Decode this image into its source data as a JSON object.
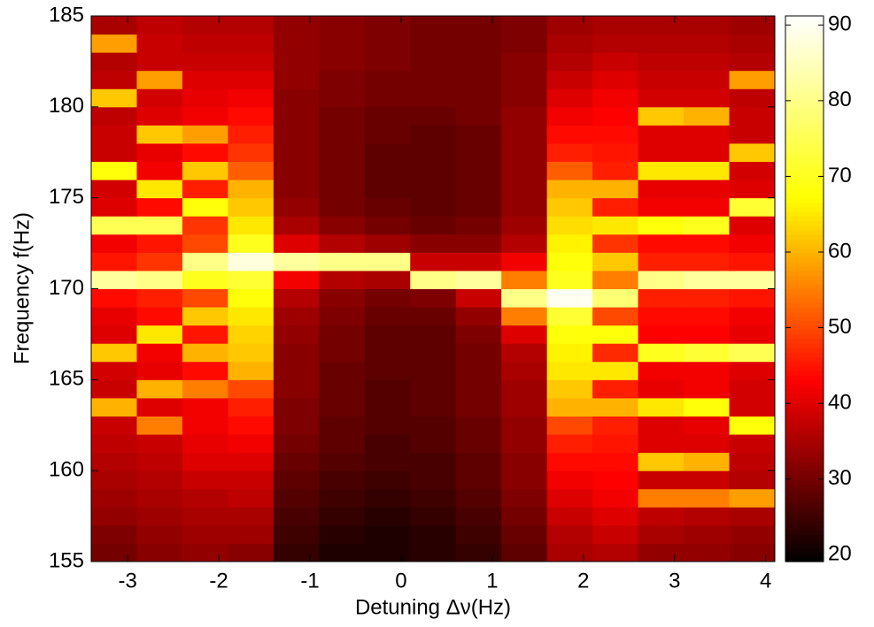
{
  "chart_data": {
    "type": "heatmap",
    "xlabel": "Detuning Δν(Hz)",
    "ylabel": "Frequency f(Hz)",
    "x": [
      -3.15,
      -2.65,
      -2.15,
      -1.65,
      -1.15,
      -0.65,
      -0.15,
      0.35,
      0.85,
      1.35,
      1.85,
      2.35,
      2.85,
      3.35,
      3.85
    ],
    "y": [
      155.5,
      156.5,
      157.5,
      158.5,
      159.5,
      160.5,
      161.5,
      162.5,
      163.5,
      164.5,
      165.5,
      166.5,
      167.5,
      168.5,
      169.5,
      170.5,
      171.5,
      172.5,
      173.5,
      174.5,
      175.5,
      176.5,
      177.5,
      178.5,
      179.5,
      180.5,
      181.5,
      182.5,
      183.5,
      184.5
    ],
    "values": [
      [
        30,
        32,
        33,
        32,
        24,
        22,
        22,
        23,
        24,
        28,
        35,
        36,
        33,
        33,
        32
      ],
      [
        31,
        33,
        34,
        34,
        25,
        23,
        22,
        23,
        25,
        29,
        36,
        38,
        35,
        34,
        33
      ],
      [
        33,
        34,
        35,
        35,
        26,
        24,
        23,
        24,
        26,
        30,
        38,
        40,
        37,
        36,
        35
      ],
      [
        34,
        35,
        36,
        37,
        27,
        25,
        24,
        25,
        27,
        31,
        40,
        42,
        55,
        55,
        58
      ],
      [
        35,
        36,
        38,
        38,
        28,
        26,
        25,
        26,
        28,
        32,
        42,
        43,
        38,
        38,
        36
      ],
      [
        36,
        37,
        40,
        40,
        29,
        27,
        26,
        26,
        28,
        32,
        44,
        44,
        62,
        60,
        37
      ],
      [
        37,
        38,
        41,
        42,
        30,
        28,
        26,
        27,
        29,
        33,
        46,
        45,
        40,
        40,
        38
      ],
      [
        38,
        55,
        42,
        44,
        31,
        28,
        27,
        27,
        29,
        33,
        50,
        46,
        40,
        41,
        68
      ],
      [
        60,
        40,
        42,
        46,
        31,
        29,
        27,
        28,
        30,
        34,
        60,
        60,
        65,
        68,
        39
      ],
      [
        38,
        60,
        55,
        50,
        32,
        29,
        27,
        28,
        30,
        34,
        62,
        46,
        41,
        42,
        39
      ],
      [
        39,
        41,
        44,
        60,
        32,
        29,
        28,
        28,
        30,
        35,
        65,
        65,
        42,
        42,
        40
      ],
      [
        62,
        42,
        60,
        62,
        32,
        30,
        28,
        28,
        30,
        36,
        66,
        47,
        70,
        72,
        75
      ],
      [
        40,
        65,
        45,
        63,
        33,
        30,
        28,
        28,
        31,
        40,
        68,
        68,
        43,
        43,
        41
      ],
      [
        41,
        44,
        62,
        65,
        34,
        31,
        29,
        29,
        33,
        55,
        72,
        50,
        44,
        44,
        42
      ],
      [
        44,
        46,
        50,
        68,
        36,
        32,
        30,
        31,
        38,
        80,
        90,
        78,
        46,
        46,
        45
      ],
      [
        82,
        80,
        70,
        72,
        42,
        36,
        35,
        80,
        82,
        55,
        70,
        55,
        80,
        82,
        82
      ],
      [
        45,
        48,
        80,
        88,
        82,
        80,
        80,
        38,
        38,
        42,
        68,
        62,
        46,
        46,
        45
      ],
      [
        42,
        45,
        50,
        70,
        40,
        36,
        34,
        32,
        32,
        36,
        66,
        48,
        44,
        44,
        42
      ],
      [
        75,
        75,
        48,
        65,
        35,
        32,
        30,
        29,
        30,
        34,
        64,
        65,
        68,
        70,
        40
      ],
      [
        40,
        44,
        68,
        62,
        33,
        30,
        29,
        28,
        29,
        33,
        62,
        46,
        42,
        42,
        72
      ],
      [
        39,
        65,
        46,
        60,
        32,
        30,
        28,
        28,
        29,
        33,
        60,
        60,
        41,
        41,
        40
      ],
      [
        68,
        42,
        62,
        52,
        32,
        30,
        28,
        28,
        29,
        33,
        52,
        46,
        65,
        65,
        39
      ],
      [
        38,
        41,
        44,
        48,
        32,
        30,
        28,
        28,
        29,
        33,
        46,
        45,
        40,
        40,
        62
      ],
      [
        38,
        62,
        58,
        46,
        32,
        30,
        29,
        28,
        29,
        33,
        44,
        44,
        40,
        40,
        38
      ],
      [
        37,
        40,
        42,
        44,
        32,
        30,
        29,
        29,
        30,
        33,
        42,
        43,
        62,
        60,
        38
      ],
      [
        62,
        39,
        41,
        42,
        32,
        31,
        30,
        30,
        30,
        32,
        40,
        42,
        39,
        39,
        37
      ],
      [
        37,
        58,
        40,
        40,
        33,
        31,
        30,
        30,
        30,
        32,
        38,
        40,
        38,
        38,
        58
      ],
      [
        36,
        38,
        38,
        38,
        33,
        32,
        31,
        30,
        30,
        32,
        36,
        38,
        37,
        37,
        36
      ],
      [
        58,
        38,
        37,
        37,
        33,
        32,
        31,
        30,
        30,
        31,
        35,
        36,
        36,
        36,
        35
      ],
      [
        35,
        37,
        36,
        36,
        33,
        32,
        31,
        30,
        30,
        31,
        34,
        35,
        35,
        35,
        34
      ]
    ],
    "xlim": [
      -3.4,
      4.1
    ],
    "xticks": [
      -3,
      -2,
      -1,
      0,
      1,
      2,
      3,
      4
    ],
    "ylim": [
      155,
      185
    ],
    "yticks": [
      155,
      160,
      165,
      170,
      175,
      180,
      185
    ],
    "clim": [
      19.1,
      91.2
    ],
    "cticks": [
      20,
      30,
      40,
      50,
      60,
      70,
      80,
      90
    ],
    "colormap": [
      "#000000",
      "#ff0000",
      "#ffff00",
      "#ffffff"
    ]
  }
}
